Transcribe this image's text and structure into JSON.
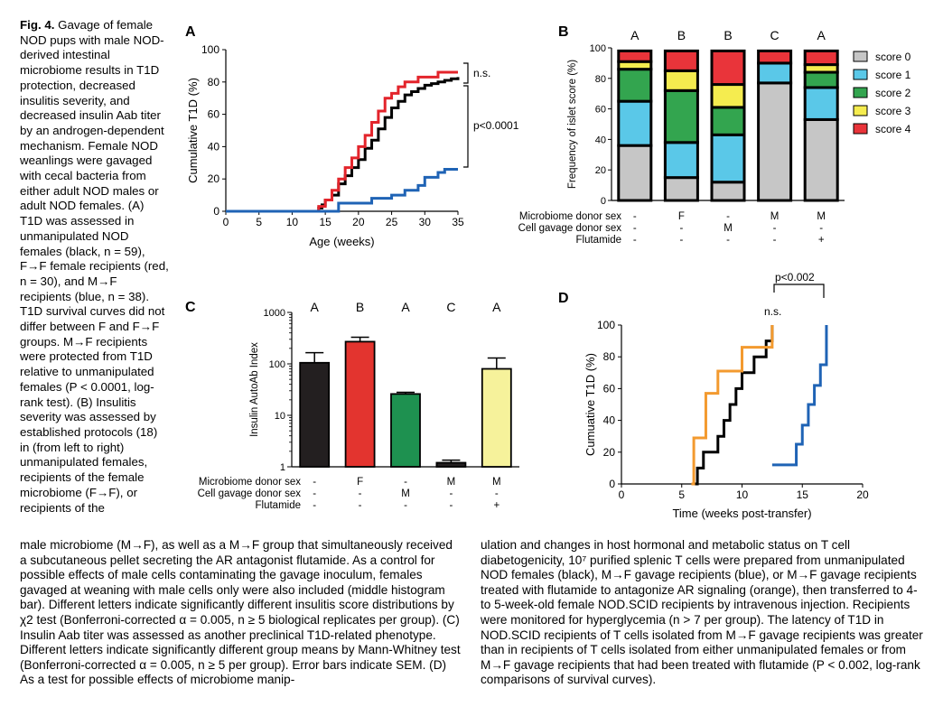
{
  "caption": {
    "fig_label": "Fig. 4.",
    "col1": " Gavage of female NOD pups with male NOD-derived intestinal microbiome results in T1D protection, decreased insulitis severity, and decreased insulin Aab titer by an androgen-dependent mechanism. Female NOD weanlings were gavaged with cecal bacteria from either adult NOD males or adult NOD females. (A) T1D was assessed in unmanipulated NOD females (black, n = 59), F→F female recipients (red, n = 30), and M→F recipients (blue, n = 38). T1D survival curves did not differ between F and F→F groups. M→F recipients were protected from T1D relative to unmanipulated females (P < 0.0001, log-rank test). (B) Insulitis severity was assessed by established protocols (18) in (from left to right) unmanipulated females, recipients of the female microbiome (F→F), or recipients of the",
    "left": "male microbiome (M→F), as well as a M→F group that simultaneously received a subcutaneous pellet secreting the AR antagonist flutamide. As a control for possible effects of male cells contaminating the gavage inoculum, females gavaged at weaning with male cells only were also included (middle histogram bar). Different letters indicate significantly different insulitis score distributions by χ2 test (Bonferroni-corrected α = 0.005, n ≥ 5 biological replicates per group). (C) Insulin Aab titer was assessed as another preclinical T1D-related phenotype. Different letters indicate significantly different group means by Mann-Whitney test (Bonferroni-corrected α = 0.005, n ≥ 5 per group). Error bars indicate SEM. (D) As a test for possible effects of microbiome manip-",
    "right": "ulation and changes in host hormonal and metabolic status on T cell diabetogenicity, 10⁷ purified splenic T cells were prepared from unmanipulated NOD females (black), M→F gavage recipients (blue), or M→F gavage recipients treated with flutamide to antagonize AR signaling (orange), then transferred to 4- to 5-week-old female NOD.SCID recipients by intravenous injection. Recipients were monitored for hyperglycemia (n > 7 per group). The latency of T1D in NOD.SCID recipients of T cells isolated from M→F gavage recipients was greater than in recipients of T cells isolated from either unmanipulated females or from M→F gavage recipients that had been treated with flutamide (P < 0.002, log-rank comparisons of survival curves)."
  },
  "panels": {
    "A": "A",
    "B": "B",
    "C": "C",
    "D": "D"
  },
  "chart_data": [
    {
      "id": "A",
      "type": "line",
      "xlabel": "Age (weeks)",
      "ylabel": "Cumulative T1D (%)",
      "xlim": [
        0,
        35
      ],
      "ylim": [
        0,
        100
      ],
      "xticks": [
        "0",
        "5",
        "10",
        "15",
        "20",
        "25",
        "30",
        "35"
      ],
      "yticks": [
        "0",
        "20",
        "40",
        "60",
        "80",
        "100"
      ],
      "annotations": [
        "n.s.",
        "p<0.0001"
      ],
      "series": [
        {
          "color": "#000000",
          "x": [
            0,
            13.5,
            14,
            14.5,
            15,
            16,
            17,
            18,
            19,
            20,
            21,
            22,
            23,
            24,
            25,
            26,
            27,
            28,
            29,
            30,
            31,
            32,
            33,
            34,
            35
          ],
          "y": [
            0,
            0,
            2,
            4,
            7,
            10,
            17,
            22,
            27,
            32,
            39,
            44,
            51,
            58,
            64,
            68,
            72,
            74,
            76,
            78,
            79,
            80,
            81,
            82,
            83
          ]
        },
        {
          "color": "#e3242b",
          "x": [
            0,
            13.5,
            14,
            15,
            16,
            17,
            18,
            19,
            20,
            21,
            22,
            23,
            24,
            25,
            26,
            27,
            28,
            29,
            30,
            31,
            32,
            33,
            34,
            35
          ],
          "y": [
            0,
            0,
            3,
            7,
            13,
            20,
            27,
            33,
            40,
            47,
            55,
            62,
            70,
            73,
            77,
            80,
            80,
            83,
            83,
            83,
            86,
            86,
            86,
            86
          ]
        },
        {
          "color": "#1f63b5",
          "x": [
            0,
            16,
            17,
            18,
            19,
            20,
            21,
            22,
            23,
            24,
            25,
            26,
            27,
            28,
            29,
            30,
            31,
            32,
            33,
            34,
            35
          ],
          "y": [
            0,
            0,
            5,
            5,
            5,
            5,
            5,
            8,
            8,
            8,
            10,
            10,
            13,
            13,
            16,
            21,
            21,
            24,
            26,
            26,
            26
          ]
        }
      ]
    },
    {
      "id": "B",
      "type": "bar",
      "ylabel": "Frequency of islet score (%)",
      "ylim": [
        0,
        100
      ],
      "yticks": [
        "0",
        "20",
        "40",
        "60",
        "80",
        "100"
      ],
      "letters": [
        "A",
        "B",
        "B",
        "C",
        "A"
      ],
      "series": [
        {
          "name": "score 0",
          "color": "#c6c6c6",
          "values": [
            36,
            15,
            12,
            77,
            53
          ]
        },
        {
          "name": "score 1",
          "color": "#5ac8e8",
          "values": [
            29,
            23,
            31,
            13,
            21
          ]
        },
        {
          "name": "score 2",
          "color": "#33a54f",
          "values": [
            21,
            34,
            18,
            0,
            10
          ]
        },
        {
          "name": "score 3",
          "color": "#f5ec4f",
          "values": [
            5,
            13,
            15,
            0,
            5
          ]
        },
        {
          "name": "score 4",
          "color": "#e9343a",
          "values": [
            7,
            13,
            22,
            8,
            9
          ]
        }
      ],
      "rows": [
        {
          "label": "Microbiome donor sex",
          "values": [
            "-",
            "F",
            "-",
            "M",
            "M"
          ]
        },
        {
          "label": "Cell gavage donor sex",
          "values": [
            "-",
            "-",
            "M",
            "-",
            "-"
          ]
        },
        {
          "label": "Flutamide",
          "values": [
            "-",
            "-",
            "-",
            "-",
            "+"
          ]
        }
      ]
    },
    {
      "id": "C",
      "type": "bar",
      "ylabel": "Insulin AutoAb Index",
      "scale": "log",
      "ylim": [
        1,
        1000
      ],
      "yticks": [
        "1",
        "10",
        "100",
        "1000"
      ],
      "letters": [
        "A",
        "B",
        "A",
        "C",
        "A"
      ],
      "values": [
        105,
        270,
        26,
        1.2,
        80
      ],
      "errors": [
        165,
        330,
        28,
        1.35,
        130
      ],
      "colors": [
        "#231f20",
        "#e3342f",
        "#1e9150",
        "#231f20",
        "#f6f29b"
      ],
      "rows": [
        {
          "label": "Microbiome donor sex",
          "values": [
            "-",
            "F",
            "-",
            "M",
            "M"
          ]
        },
        {
          "label": "Cell gavage donor sex",
          "values": [
            "-",
            "-",
            "M",
            "-",
            "-"
          ]
        },
        {
          "label": "Flutamide",
          "values": [
            "-",
            "-",
            "-",
            "-",
            "+"
          ]
        }
      ]
    },
    {
      "id": "D",
      "type": "line",
      "xlabel": "Time (weeks post-transfer)",
      "ylabel": "Cumuative T1D (%)",
      "xlim": [
        0,
        20
      ],
      "ylim": [
        0,
        100
      ],
      "xticks": [
        "0",
        "5",
        "10",
        "15",
        "20"
      ],
      "yticks": [
        "0",
        "20",
        "40",
        "60",
        "80",
        "100"
      ],
      "annotations": [
        "p<0.002",
        "n.s."
      ],
      "series": [
        {
          "color": "#000000",
          "x": [
            6,
            6.3,
            6.8,
            7.5,
            8,
            8.5,
            9,
            9.5,
            10,
            10.5,
            11,
            11.5,
            12,
            12.5
          ],
          "y": [
            0,
            10,
            20,
            20,
            30,
            40,
            50,
            60,
            70,
            70,
            80,
            80,
            90,
            100
          ]
        },
        {
          "color": "#f39a2f",
          "x": [
            5.8,
            6,
            6.5,
            7,
            7.5,
            8,
            8.5,
            9,
            10,
            10.5,
            11,
            12,
            12.5
          ],
          "y": [
            0,
            29,
            29,
            57,
            57,
            71,
            71,
            71,
            86,
            86,
            86,
            86,
            100
          ]
        },
        {
          "color": "#1f63b5",
          "x": [
            12.5,
            13,
            14,
            14.5,
            15,
            15.5,
            16,
            16.5,
            17
          ],
          "y": [
            12,
            12,
            12,
            25,
            37,
            50,
            62,
            75,
            100
          ]
        }
      ]
    }
  ]
}
